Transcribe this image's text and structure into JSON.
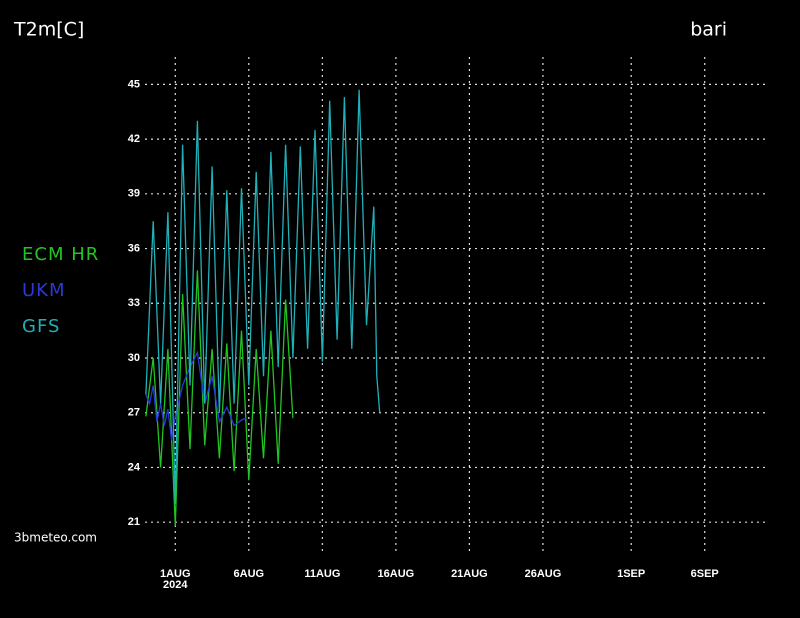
{
  "chart_data": {
    "type": "line",
    "title": "T2m[C]",
    "location": "bari",
    "source": "3bmeteo.com",
    "year": "2024",
    "grid": true,
    "xlim": [
      -1.4,
      41.1
    ],
    "ylim": [
      19.2,
      46.5
    ],
    "yticks": [
      21,
      24,
      27,
      30,
      33,
      36,
      39,
      42,
      45
    ],
    "xticks": [
      {
        "value": 1,
        "label": "1AUG"
      },
      {
        "value": 6,
        "label": "6AUG"
      },
      {
        "value": 11,
        "label": "11AUG"
      },
      {
        "value": 16,
        "label": "16AUG"
      },
      {
        "value": 21,
        "label": "21AUG"
      },
      {
        "value": 26,
        "label": "26AUG"
      },
      {
        "value": 32,
        "label": "1SEP"
      },
      {
        "value": 37,
        "label": "6SEP"
      }
    ],
    "series": [
      {
        "name": "ECM HR",
        "color": "#22c422",
        "x": [
          -1.0,
          -0.5,
          0.0,
          0.5,
          1.0,
          1.5,
          2.0,
          2.5,
          3.0,
          3.5,
          4.0,
          4.5,
          5.0,
          5.5,
          6.0,
          6.5,
          7.0,
          7.5,
          8.0,
          8.5,
          9.0
        ],
        "values": [
          26.8,
          30,
          24,
          30.5,
          20.8,
          33.5,
          25,
          34.8,
          25.2,
          30.5,
          24.5,
          30.8,
          23.8,
          31.5,
          23.3,
          30.5,
          24.5,
          31.5,
          24.2,
          33.2,
          26.7
        ]
      },
      {
        "name": "UKM",
        "color": "#2a3ad8",
        "x": [
          -1.0,
          -0.75,
          -0.5,
          -0.25,
          0.0,
          0.25,
          0.5,
          0.75,
          1.0,
          1.5,
          2.0,
          2.5,
          3.0,
          3.5,
          4.0,
          4.5,
          5.0,
          5.5,
          5.8
        ],
        "values": [
          28,
          27.5,
          28.5,
          26.5,
          27.5,
          26.3,
          27.2,
          25.5,
          26.8,
          28.5,
          29.5,
          30.3,
          27.5,
          29.0,
          26.5,
          27.3,
          26.3,
          26.6,
          26.7
        ]
      },
      {
        "name": "GFS",
        "color": "#20b0b8",
        "x": [
          -1.0,
          -0.5,
          0.0,
          0.5,
          1.0,
          1.5,
          2.0,
          2.5,
          3.0,
          3.5,
          4.0,
          4.5,
          5.0,
          5.5,
          6.0,
          6.5,
          7.0,
          7.5,
          8.0,
          8.5,
          9.0,
          9.5,
          10.0,
          10.5,
          11.0,
          11.5,
          12.0,
          12.5,
          13.0,
          13.5,
          14.0,
          14.5,
          14.7,
          14.9
        ],
        "values": [
          28,
          37.5,
          27.5,
          38,
          22,
          41.7,
          28.5,
          43,
          27.5,
          40.5,
          27,
          39.2,
          27.5,
          39.3,
          28.5,
          40.2,
          29,
          41.3,
          29.5,
          41.7,
          30,
          41.6,
          30.5,
          42.5,
          29.8,
          44.1,
          31,
          44.3,
          30.5,
          44.7,
          31.8,
          38.3,
          29,
          27
        ]
      }
    ]
  }
}
